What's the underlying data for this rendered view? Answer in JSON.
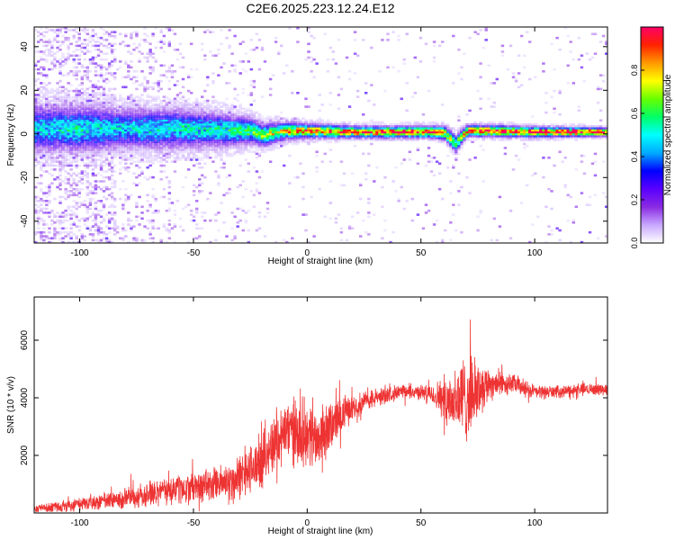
{
  "figure": {
    "title": "C2E6.2025.223.12.24.E12"
  },
  "chart_data": [
    {
      "type": "heatmap",
      "title": "",
      "xlabel": "Height of straight line (km)",
      "ylabel": "Frequency (Hz)",
      "xlim": [
        -120,
        132
      ],
      "ylim": [
        -50,
        49
      ],
      "xticks": [
        -100,
        -50,
        0,
        50,
        100
      ],
      "yticks": [
        -40,
        -20,
        0,
        20,
        40
      ],
      "colorbar": {
        "label": "Normalized spectral amplitude",
        "range": [
          0,
          1
        ],
        "ticks": [
          0.0,
          0.2,
          0.4,
          0.6,
          0.8
        ],
        "tick_labels": [
          "0.0",
          "0.2",
          "0.4",
          "0.6",
          "0.8"
        ],
        "colormap": [
          "#ffffff",
          "#c8a8ff",
          "#8a2be2",
          "#5a00ff",
          "#0000ff",
          "#00aaff",
          "#00ffff",
          "#00ff66",
          "#66ff00",
          "#ffff00",
          "#ff9900",
          "#ff2200",
          "#ff0066"
        ]
      },
      "ridge": {
        "x": [
          -120,
          -100,
          -80,
          -60,
          -40,
          -25,
          -20,
          -10,
          0,
          20,
          40,
          55,
          60,
          63,
          65,
          67,
          70,
          80,
          100,
          132
        ],
        "freq": [
          2,
          2,
          2,
          2,
          1.5,
          1,
          -1,
          1,
          1,
          0.5,
          0.5,
          0.5,
          0,
          -3,
          -5,
          -2,
          1,
          1,
          0.5,
          0.5
        ],
        "peak": [
          0.42,
          0.45,
          0.42,
          0.45,
          0.48,
          0.55,
          0.6,
          0.72,
          0.8,
          0.85,
          0.9,
          0.9,
          0.7,
          0.6,
          0.6,
          0.7,
          0.8,
          0.9,
          0.92,
          0.95
        ],
        "spread": [
          8,
          8,
          7,
          7,
          6,
          4.5,
          4,
          3,
          2.5,
          2,
          2,
          2,
          2.5,
          3,
          3,
          2.5,
          2,
          2,
          1.8,
          1.5
        ]
      }
    },
    {
      "type": "line",
      "title": "",
      "xlabel": "Height of straight line (km)",
      "ylabel": "SNR (10 * v/v)",
      "xlim": [
        -120,
        132
      ],
      "ylim": [
        0,
        7500
      ],
      "xticks": [
        -100,
        -50,
        0,
        50,
        100
      ],
      "yticks": [
        2000,
        4000,
        6000
      ],
      "series": [
        {
          "color": "#ee3333",
          "x": [
            -120,
            -100,
            -80,
            -60,
            -40,
            -30,
            -20,
            -15,
            -10,
            -5,
            0,
            5,
            10,
            15,
            20,
            30,
            40,
            50,
            55,
            60,
            65,
            70,
            75,
            80,
            90,
            100,
            110,
            120,
            132
          ],
          "baseline": [
            150,
            300,
            500,
            800,
            1000,
            1200,
            1800,
            2400,
            2800,
            2900,
            2700,
            2600,
            3000,
            3400,
            3700,
            4000,
            4200,
            4200,
            4100,
            4000,
            3900,
            4000,
            4300,
            4500,
            4500,
            4200,
            4200,
            4300,
            4300
          ],
          "amplitude": [
            150,
            300,
            450,
            600,
            700,
            900,
            1100,
            1200,
            1300,
            1400,
            1400,
            1200,
            1000,
            800,
            500,
            400,
            300,
            300,
            400,
            900,
            1500,
            1800,
            1200,
            700,
            400,
            300,
            250,
            250,
            250
          ]
        }
      ]
    }
  ]
}
